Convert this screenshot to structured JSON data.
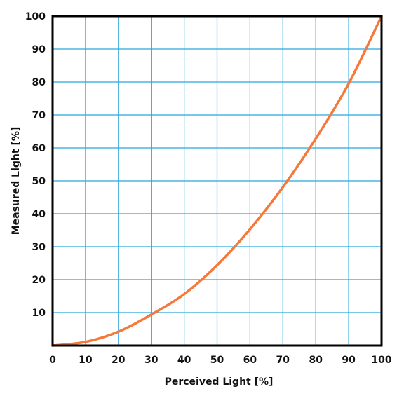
{
  "chart_data": {
    "type": "line",
    "title": "",
    "xlabel": "Perceived Light [%]",
    "ylabel": "Measured Light [%]",
    "xlim": [
      0,
      100
    ],
    "ylim": [
      0,
      100
    ],
    "xticks": [
      0,
      10,
      20,
      30,
      40,
      50,
      60,
      70,
      80,
      90,
      100
    ],
    "yticks": [
      10,
      20,
      30,
      40,
      50,
      60,
      70,
      80,
      90,
      100
    ],
    "grid": true,
    "legend": "none",
    "colors": {
      "line": "#f5793a",
      "grid": "#2aa7dc",
      "frame": "#000000"
    },
    "series": [
      {
        "x": [
          0,
          10,
          20,
          30,
          40,
          50,
          60,
          70,
          80,
          90,
          100
        ],
        "y": [
          0,
          1.1,
          4.2,
          9.4,
          15.6,
          24.4,
          35.3,
          48.1,
          62.8,
          79.5,
          100
        ]
      }
    ]
  }
}
